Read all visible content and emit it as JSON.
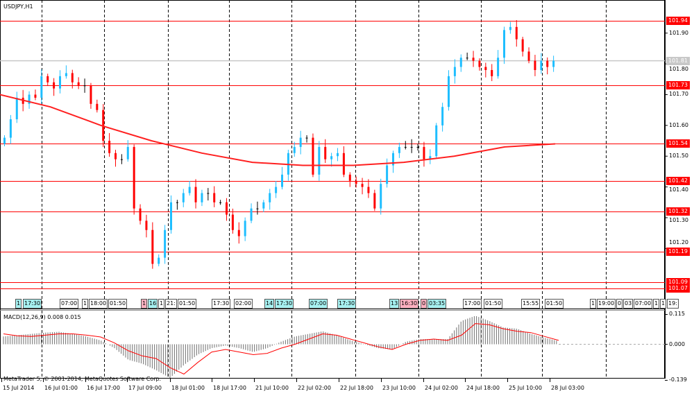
{
  "window": {
    "symbol_label": "USDJPY,H1"
  },
  "colors": {
    "bull": "#1ebeff",
    "bear": "#ff0000",
    "doji": "#000000",
    "level_line": "#ff0000",
    "ma_line": "#ff2020",
    "current_price": "#c8c8c8",
    "macd_hist": "#707070",
    "macd_signal": "#ff0000",
    "event_cyan": "#a6f0f0",
    "event_pink": "#ffb0c0"
  },
  "price_axis": {
    "range": [
      101.07,
      101.94
    ],
    "ticks": [
      "101.90",
      "101.80",
      "101.70",
      "101.60",
      "101.50",
      "101.40",
      "101.30",
      "101.20"
    ],
    "current_price": "101.81",
    "levels": [
      "101.94",
      "101.73",
      "101.54",
      "101.42",
      "101.32",
      "101.19",
      "101.09",
      "101.07"
    ]
  },
  "chart_data": {
    "type": "candlestick",
    "closes": [
      101.56,
      101.62,
      101.69,
      101.67,
      101.7,
      101.69,
      101.76,
      101.74,
      101.72,
      101.76,
      101.77,
      101.74,
      101.73,
      101.73,
      101.67,
      101.65,
      101.55,
      101.51,
      101.49,
      101.49,
      101.53,
      101.33,
      101.29,
      101.26,
      101.15,
      101.17,
      101.26,
      101.35,
      101.35,
      101.38,
      101.4,
      101.35,
      101.38,
      101.38,
      101.35,
      101.35,
      101.31,
      101.26,
      101.24,
      101.29,
      101.33,
      101.33,
      101.35,
      101.38,
      101.4,
      101.44,
      101.51,
      101.53,
      101.56,
      101.56,
      101.44,
      101.53,
      101.49,
      101.5,
      101.51,
      101.44,
      101.42,
      101.41,
      101.4,
      101.38,
      101.33,
      101.41,
      101.47,
      101.51,
      101.53,
      101.53,
      101.53,
      101.53,
      101.49,
      101.5,
      101.6,
      101.66,
      101.76,
      101.79,
      101.82,
      101.82,
      101.81,
      101.79,
      101.78,
      101.76,
      101.82,
      101.91,
      101.92,
      101.88,
      101.84,
      101.81,
      101.78,
      101.81,
      101.79,
      101.81
    ],
    "moving_average": [
      101.7,
      101.66,
      101.6,
      101.55,
      101.51,
      101.48,
      101.47,
      101.47,
      101.48,
      101.5,
      101.53,
      101.54
    ],
    "x_tick_labels": [
      "15 Jul 2014",
      "16 Jul 01:00",
      "16 Jul 17:00",
      "17 Jul 09:00",
      "18 Jul 01:00",
      "18 Jul 17:00",
      "21 Jul 10:00",
      "22 Jul 02:00",
      "22 Jul 18:00",
      "23 Jul 10:00",
      "24 Jul 02:00",
      "24 Jul 18:00",
      "25 Jul 10:00",
      "28 Jul 03:00"
    ]
  },
  "macd": {
    "label": "MACD(12,26,9) 0.008 0.015",
    "ticks": [
      "0.115",
      "0.000",
      "-0.139"
    ],
    "range": [
      -0.139,
      0.115
    ],
    "histogram": [
      0.03,
      0.035,
      0.04,
      0.045,
      0.048,
      0.04,
      0.03,
      0.015,
      -0.015,
      -0.06,
      -0.075,
      -0.1,
      -0.13,
      -0.08,
      -0.04,
      -0.015,
      -0.005,
      -0.015,
      -0.03,
      -0.015,
      0.01,
      0.03,
      0.04,
      0.05,
      0.035,
      0.015,
      0.0,
      -0.015,
      -0.02,
      0.01,
      0.02,
      0.02,
      0.02,
      0.09,
      0.11,
      0.09,
      0.065,
      0.06,
      0.04,
      0.025,
      0.012
    ],
    "signal": [
      0.04,
      0.033,
      0.03,
      0.035,
      0.04,
      0.04,
      0.035,
      0.028,
      0.005,
      -0.025,
      -0.045,
      -0.055,
      -0.09,
      -0.115,
      -0.07,
      -0.03,
      -0.02,
      -0.03,
      -0.04,
      -0.035,
      -0.015,
      0.0,
      0.02,
      0.04,
      0.035,
      0.02,
      0.005,
      -0.01,
      -0.02,
      0.0,
      0.015,
      0.02,
      0.015,
      0.035,
      0.08,
      0.075,
      0.06,
      0.05,
      0.045,
      0.03,
      0.015
    ]
  },
  "events": [
    {
      "text": "1",
      "color": "cyan"
    },
    {
      "text": "17:30",
      "color": "cyan"
    },
    {
      "text": "07:00",
      "color": "white"
    },
    {
      "text": "1",
      "color": "white"
    },
    {
      "text": "18:00",
      "color": "white"
    },
    {
      "text": "01:50",
      "color": "white"
    },
    {
      "text": "1",
      "color": "pink"
    },
    {
      "text": "16",
      "color": "cyan"
    },
    {
      "text": "1",
      "color": "white"
    },
    {
      "text": "21:",
      "color": "white"
    },
    {
      "text": "01:50",
      "color": "white"
    },
    {
      "text": "17:30",
      "color": "white"
    },
    {
      "text": "02:00",
      "color": "white"
    },
    {
      "text": "14",
      "color": "cyan"
    },
    {
      "text": "17:30",
      "color": "cyan"
    },
    {
      "text": "07:00",
      "color": "cyan"
    },
    {
      "text": "17:30",
      "color": "cyan"
    },
    {
      "text": "13",
      "color": "cyan"
    },
    {
      "text": "16:30",
      "color": "pink"
    },
    {
      "text": "0",
      "color": "pink"
    },
    {
      "text": "03:35",
      "color": "cyan"
    },
    {
      "text": "17:00",
      "color": "white"
    },
    {
      "text": "01:50",
      "color": "white"
    },
    {
      "text": "15:55",
      "color": "white"
    },
    {
      "text": "01:50",
      "color": "white"
    },
    {
      "text": "1",
      "color": "white"
    },
    {
      "text": "19:00",
      "color": "white"
    },
    {
      "text": "0",
      "color": "white"
    },
    {
      "text": "03",
      "color": "white"
    },
    {
      "text": "07:00",
      "color": "white"
    },
    {
      "text": "1",
      "color": "white"
    },
    {
      "text": "1",
      "color": "white"
    },
    {
      "text": "19:",
      "color": "white"
    }
  ],
  "copyright": "MetaTrader 5, © 2001-2014, MetaQuotes Software Corp."
}
